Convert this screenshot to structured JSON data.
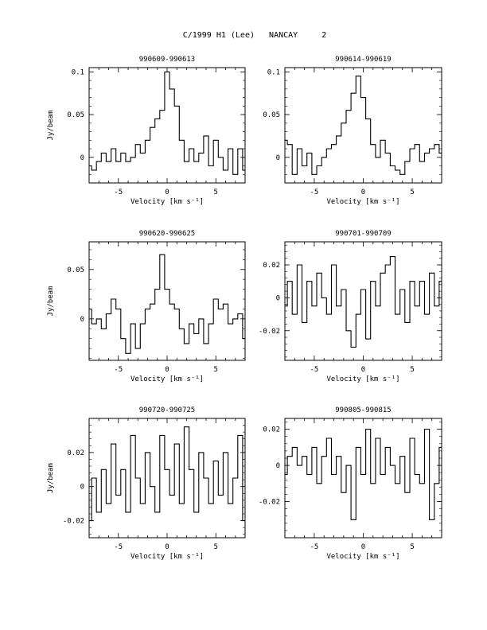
{
  "page_title": "C/1999 H1 (Lee)   NANCAY     2",
  "chart_data": [
    {
      "type": "line",
      "style": "step",
      "title": "990609-990613",
      "xlabel": "Velocity [km s⁻¹]",
      "ylabel": "Jy/beam",
      "xlim": [
        -8,
        8
      ],
      "ylim": [
        -0.03,
        0.105
      ],
      "xticks": [
        -5,
        0,
        5
      ],
      "yticks": [
        0,
        0.05,
        0.1
      ],
      "ytick_labels": [
        "0",
        "0.05",
        "0.1"
      ],
      "x": [
        -8.0,
        -7.5,
        -7.0,
        -6.5,
        -6.0,
        -5.5,
        -5.0,
        -4.5,
        -4.0,
        -3.5,
        -3.0,
        -2.5,
        -2.0,
        -1.5,
        -1.0,
        -0.5,
        0.0,
        0.5,
        1.0,
        1.5,
        2.0,
        2.5,
        3.0,
        3.5,
        4.0,
        4.5,
        5.0,
        5.5,
        6.0,
        6.5,
        7.0,
        7.5,
        8.0
      ],
      "y": [
        -0.01,
        -0.015,
        -0.005,
        0.005,
        -0.005,
        0.01,
        -0.005,
        0.005,
        -0.005,
        0.0,
        0.015,
        0.005,
        0.02,
        0.035,
        0.045,
        0.055,
        0.1,
        0.08,
        0.06,
        0.02,
        -0.005,
        0.01,
        -0.005,
        0.005,
        0.025,
        -0.01,
        0.02,
        0.0,
        -0.015,
        0.01,
        -0.02,
        0.01,
        -0.015
      ]
    },
    {
      "type": "line",
      "style": "step",
      "title": "990614-990619",
      "xlabel": "Velocity [km s⁻¹]",
      "ylabel": "",
      "xlim": [
        -8,
        8
      ],
      "ylim": [
        -0.03,
        0.105
      ],
      "xticks": [
        -5,
        0,
        5
      ],
      "yticks": [
        0,
        0.05,
        0.1
      ],
      "ytick_labels": [
        "0",
        "0.05",
        "0.1"
      ],
      "x": [
        -8.0,
        -7.5,
        -7.0,
        -6.5,
        -6.0,
        -5.5,
        -5.0,
        -4.5,
        -4.0,
        -3.5,
        -3.0,
        -2.5,
        -2.0,
        -1.5,
        -1.0,
        -0.5,
        0.0,
        0.5,
        1.0,
        1.5,
        2.0,
        2.5,
        3.0,
        3.5,
        4.0,
        4.5,
        5.0,
        5.5,
        6.0,
        6.5,
        7.0,
        7.5,
        8.0
      ],
      "y": [
        0.02,
        0.015,
        -0.02,
        0.01,
        -0.01,
        0.005,
        -0.02,
        -0.01,
        0.0,
        0.01,
        0.015,
        0.025,
        0.04,
        0.055,
        0.075,
        0.095,
        0.07,
        0.045,
        0.015,
        0.0,
        0.02,
        0.005,
        -0.01,
        -0.015,
        -0.02,
        -0.005,
        0.01,
        0.015,
        -0.005,
        0.005,
        0.01,
        0.015,
        0.005
      ]
    },
    {
      "type": "line",
      "style": "step",
      "title": "990620-990625",
      "xlabel": "Velocity [km s⁻¹]",
      "ylabel": "Jy/beam",
      "xlim": [
        -8,
        8
      ],
      "ylim": [
        -0.042,
        0.078
      ],
      "xticks": [
        -5,
        0,
        5
      ],
      "yticks": [
        0,
        0.05
      ],
      "ytick_labels": [
        "0",
        "0.05"
      ],
      "x": [
        -8.0,
        -7.5,
        -7.0,
        -6.5,
        -6.0,
        -5.5,
        -5.0,
        -4.5,
        -4.0,
        -3.5,
        -3.0,
        -2.5,
        -2.0,
        -1.5,
        -1.0,
        -0.5,
        0.0,
        0.5,
        1.0,
        1.5,
        2.0,
        2.5,
        3.0,
        3.5,
        4.0,
        4.5,
        5.0,
        5.5,
        6.0,
        6.5,
        7.0,
        7.5,
        8.0
      ],
      "y": [
        0.01,
        -0.005,
        0.0,
        -0.01,
        0.005,
        0.02,
        0.01,
        -0.02,
        -0.035,
        -0.005,
        -0.03,
        -0.005,
        0.01,
        0.015,
        0.03,
        0.065,
        0.03,
        0.015,
        0.01,
        -0.01,
        -0.025,
        -0.005,
        -0.015,
        0.0,
        -0.025,
        -0.005,
        0.02,
        0.01,
        0.015,
        -0.005,
        0.0,
        0.005,
        -0.02
      ]
    },
    {
      "type": "line",
      "style": "step",
      "title": "990701-990709",
      "xlabel": "Velocity [km s⁻¹]",
      "ylabel": "",
      "xlim": [
        -8,
        8
      ],
      "ylim": [
        -0.038,
        0.034
      ],
      "xticks": [
        -5,
        0,
        5
      ],
      "yticks": [
        -0.02,
        0,
        0.02
      ],
      "ytick_labels": [
        "-0.02",
        "0",
        "0.02"
      ],
      "x": [
        -8.0,
        -7.5,
        -7.0,
        -6.5,
        -6.0,
        -5.5,
        -5.0,
        -4.5,
        -4.0,
        -3.5,
        -3.0,
        -2.5,
        -2.0,
        -1.5,
        -1.0,
        -0.5,
        0.0,
        0.5,
        1.0,
        1.5,
        2.0,
        2.5,
        3.0,
        3.5,
        4.0,
        4.5,
        5.0,
        5.5,
        6.0,
        6.5,
        7.0,
        7.5,
        8.0
      ],
      "y": [
        -0.005,
        0.01,
        -0.01,
        0.02,
        -0.015,
        0.01,
        -0.005,
        0.015,
        0.0,
        -0.01,
        0.02,
        -0.005,
        0.005,
        -0.02,
        -0.03,
        -0.01,
        0.005,
        -0.025,
        0.01,
        -0.005,
        0.015,
        0.02,
        0.025,
        -0.01,
        0.005,
        -0.015,
        0.01,
        -0.005,
        0.01,
        -0.01,
        0.015,
        -0.005,
        0.01
      ]
    },
    {
      "type": "line",
      "style": "step",
      "title": "990720-990725",
      "xlabel": "Velocity [km s⁻¹]",
      "ylabel": "Jy/beam",
      "xlim": [
        -8,
        8
      ],
      "ylim": [
        -0.03,
        0.04
      ],
      "xticks": [
        -5,
        0,
        5
      ],
      "yticks": [
        -0.02,
        0,
        0.02
      ],
      "ytick_labels": [
        "-0.02",
        "0",
        "0.02"
      ],
      "x": [
        -8.0,
        -7.5,
        -7.0,
        -6.5,
        -6.0,
        -5.5,
        -5.0,
        -4.5,
        -4.0,
        -3.5,
        -3.0,
        -2.5,
        -2.0,
        -1.5,
        -1.0,
        -0.5,
        0.0,
        0.5,
        1.0,
        1.5,
        2.0,
        2.5,
        3.0,
        3.5,
        4.0,
        4.5,
        5.0,
        5.5,
        6.0,
        6.5,
        7.0,
        7.5,
        8.0
      ],
      "y": [
        -0.02,
        0.005,
        -0.015,
        0.01,
        -0.01,
        0.025,
        -0.005,
        0.01,
        -0.015,
        0.03,
        0.005,
        -0.01,
        0.02,
        0.0,
        -0.015,
        0.03,
        0.01,
        -0.005,
        0.025,
        -0.01,
        0.035,
        0.01,
        -0.015,
        0.02,
        0.005,
        -0.01,
        0.015,
        -0.005,
        0.02,
        -0.01,
        0.005,
        0.03,
        -0.02
      ]
    },
    {
      "type": "line",
      "style": "step",
      "title": "990805-990815",
      "xlabel": "Velocity [km s⁻¹]",
      "ylabel": "",
      "xlim": [
        -8,
        8
      ],
      "ylim": [
        -0.04,
        0.026
      ],
      "xticks": [
        -5,
        0,
        5
      ],
      "yticks": [
        -0.02,
        0,
        0.02
      ],
      "ytick_labels": [
        "-0.02",
        "0",
        "0.02"
      ],
      "x": [
        -8.0,
        -7.5,
        -7.0,
        -6.5,
        -6.0,
        -5.5,
        -5.0,
        -4.5,
        -4.0,
        -3.5,
        -3.0,
        -2.5,
        -2.0,
        -1.5,
        -1.0,
        -0.5,
        0.0,
        0.5,
        1.0,
        1.5,
        2.0,
        2.5,
        3.0,
        3.5,
        4.0,
        4.5,
        5.0,
        5.5,
        6.0,
        6.5,
        7.0,
        7.5,
        8.0
      ],
      "y": [
        -0.005,
        0.005,
        0.01,
        0.0,
        0.005,
        -0.005,
        0.01,
        -0.01,
        0.005,
        0.015,
        -0.005,
        0.005,
        -0.015,
        0.0,
        -0.03,
        0.01,
        -0.005,
        0.02,
        -0.01,
        0.015,
        -0.005,
        0.01,
        0.0,
        -0.01,
        0.005,
        -0.015,
        0.015,
        -0.005,
        -0.01,
        0.02,
        -0.03,
        -0.01,
        0.01
      ]
    }
  ]
}
